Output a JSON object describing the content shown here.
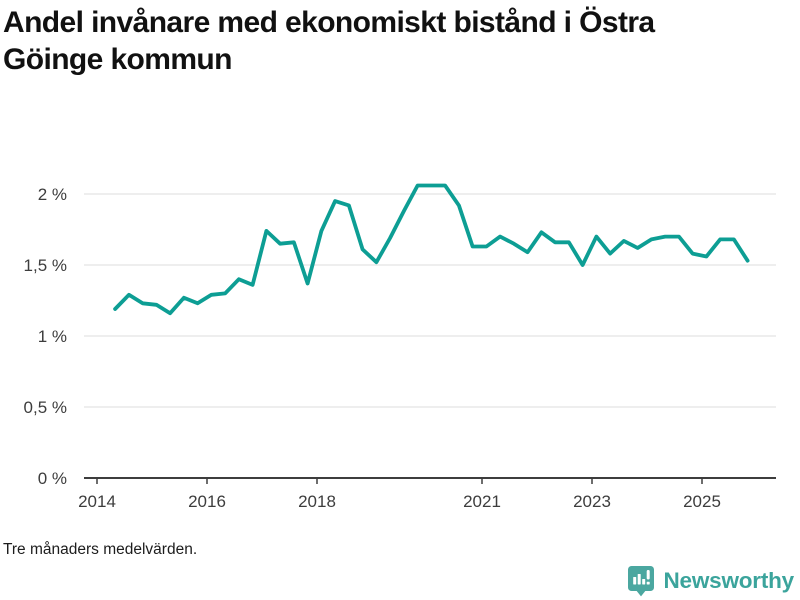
{
  "header": {
    "title": "Andel invånare med ekonomiskt bistånd i Östra\nGöinge kommun"
  },
  "footer": {
    "note": "Tre månaders medelvärden.",
    "brand": "Newsworthy",
    "brand_color": "#3ba49c",
    "brand_icon": "bar-chart-speech-bubble",
    "brand_icon_color": "#4ba7a0"
  },
  "chart_data": {
    "type": "line",
    "title": "Andel invånare med ekonomiskt bistånd i Östra Göinge kommun",
    "subtitle_note": "Tre månaders medelvärden.",
    "unit": "%",
    "grid": "horizontal",
    "legend": "none",
    "xlim": [
      2013.76,
      2026.35
    ],
    "ylim": [
      0,
      2.17
    ],
    "y_ticks": [
      {
        "value": 0,
        "label": "0 %"
      },
      {
        "value": 0.5,
        "label": "0,5 %"
      },
      {
        "value": 1,
        "label": "1 %"
      },
      {
        "value": 1.5,
        "label": "1,5 %"
      },
      {
        "value": 2,
        "label": "2 %"
      }
    ],
    "x_ticks": [
      {
        "year": 2014,
        "label": "2014"
      },
      {
        "year": 2016,
        "label": "2016"
      },
      {
        "year": 2018,
        "label": "2018"
      },
      {
        "year": 2021,
        "label": "2021"
      },
      {
        "year": 2023,
        "label": "2023"
      },
      {
        "year": 2025,
        "label": "2025"
      }
    ],
    "series": [
      {
        "name": "Andel invånare med ekonomiskt bistånd",
        "color": "#0d9e94",
        "x": [
          2014.33,
          2014.58,
          2014.83,
          2015.08,
          2015.33,
          2015.58,
          2015.83,
          2016.08,
          2016.33,
          2016.58,
          2016.83,
          2017.08,
          2017.33,
          2017.58,
          2017.83,
          2018.08,
          2018.33,
          2018.58,
          2018.83,
          2019.08,
          2019.33,
          2019.58,
          2019.83,
          2020.08,
          2020.33,
          2020.58,
          2020.83,
          2021.08,
          2021.33,
          2021.58,
          2021.83,
          2022.08,
          2022.33,
          2022.58,
          2022.83,
          2023.08,
          2023.33,
          2023.58,
          2023.83,
          2024.08,
          2024.33,
          2024.58,
          2024.83,
          2025.08,
          2025.33,
          2025.58,
          2025.83
        ],
        "values": [
          1.19,
          1.29,
          1.23,
          1.22,
          1.16,
          1.27,
          1.23,
          1.29,
          1.3,
          1.4,
          1.36,
          1.74,
          1.65,
          1.66,
          1.37,
          1.74,
          1.95,
          1.92,
          1.61,
          1.52,
          1.69,
          1.88,
          2.06,
          2.06,
          2.06,
          1.92,
          1.63,
          1.63,
          1.7,
          1.65,
          1.59,
          1.73,
          1.66,
          1.66,
          1.5,
          1.7,
          1.58,
          1.67,
          1.62,
          1.68,
          1.7,
          1.7,
          1.58,
          1.56,
          1.68,
          1.68,
          1.53
        ]
      }
    ],
    "colors": {
      "gridline": "#e3e3e3",
      "axis": "#3d3d3d",
      "tick_label": "#3d3d3d"
    }
  }
}
